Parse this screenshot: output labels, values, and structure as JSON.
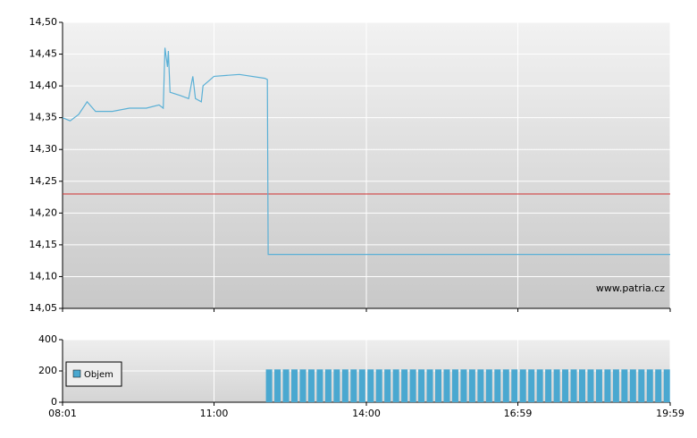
{
  "chart_data": [
    {
      "type": "line",
      "color": "#5ab0d6",
      "x": [
        "08:01",
        "08:10",
        "08:20",
        "08:30",
        "08:40",
        "09:00",
        "09:20",
        "09:40",
        "09:55",
        "10:00",
        "10:02",
        "10:05",
        "10:06",
        "10:08",
        "10:20",
        "10:30",
        "10:35",
        "10:38",
        "10:45",
        "10:47",
        "11:00",
        "11:30",
        "12:00",
        "12:03",
        "12:04",
        "19:59"
      ],
      "values": [
        14.35,
        14.345,
        14.355,
        14.375,
        14.36,
        14.36,
        14.365,
        14.365,
        14.37,
        14.365,
        14.46,
        14.43,
        14.455,
        14.39,
        14.385,
        14.38,
        14.415,
        14.38,
        14.375,
        14.4,
        14.415,
        14.418,
        14.412,
        14.41,
        14.135,
        14.135
      ],
      "xlim": [
        "08:01",
        "19:59"
      ],
      "xticks": [
        "08:01",
        "11:00",
        "14:00",
        "16:59",
        "19:59"
      ],
      "ylim": [
        14.05,
        14.5
      ],
      "yticks": [
        {
          "value": 14.05,
          "label": "14,05"
        },
        {
          "value": 14.1,
          "label": "14,10"
        },
        {
          "value": 14.15,
          "label": "14,15"
        },
        {
          "value": 14.2,
          "label": "14,20"
        },
        {
          "value": 14.25,
          "label": "14,25"
        },
        {
          "value": 14.3,
          "label": "14,30"
        },
        {
          "value": 14.35,
          "label": "14,35"
        },
        {
          "value": 14.4,
          "label": "14,40"
        },
        {
          "value": 14.45,
          "label": "14,45"
        },
        {
          "value": 14.5,
          "label": "14,50"
        }
      ],
      "reference_line": {
        "value": 14.23,
        "color": "#d03030"
      },
      "watermark": "www.patria.cz",
      "grid": true
    },
    {
      "type": "bar",
      "x": [
        "12:05",
        "12:15",
        "12:25",
        "12:35",
        "12:45",
        "12:55",
        "13:05",
        "13:15",
        "13:25",
        "13:35",
        "13:45",
        "13:55",
        "14:05",
        "14:15",
        "14:25",
        "14:35",
        "14:45",
        "14:55",
        "15:05",
        "15:15",
        "15:25",
        "15:35",
        "15:45",
        "15:55",
        "16:05",
        "16:15",
        "16:25",
        "16:35",
        "16:45",
        "16:55",
        "17:05",
        "17:15",
        "17:25",
        "17:35",
        "17:45",
        "17:55",
        "18:05",
        "18:15",
        "18:25",
        "18:35",
        "18:45",
        "18:55",
        "19:05",
        "19:15",
        "19:25",
        "19:35",
        "19:45",
        "19:55"
      ],
      "series": [
        {
          "name": "Objem",
          "color": "#4aa8d0",
          "values": [
            210,
            210,
            210,
            210,
            210,
            210,
            210,
            210,
            210,
            210,
            210,
            210,
            210,
            210,
            210,
            210,
            210,
            210,
            210,
            210,
            210,
            210,
            210,
            210,
            210,
            210,
            210,
            210,
            210,
            210,
            210,
            210,
            210,
            210,
            210,
            210,
            210,
            210,
            210,
            210,
            210,
            210,
            210,
            210,
            210,
            210,
            210,
            210
          ]
        }
      ],
      "xlim": [
        "08:01",
        "19:59"
      ],
      "xticks": [
        "08:01",
        "11:00",
        "14:00",
        "16:59",
        "19:59"
      ],
      "ylim": [
        0,
        400
      ],
      "yticks": [
        0,
        200,
        400
      ],
      "legend": "upper-left",
      "grid": true
    }
  ]
}
